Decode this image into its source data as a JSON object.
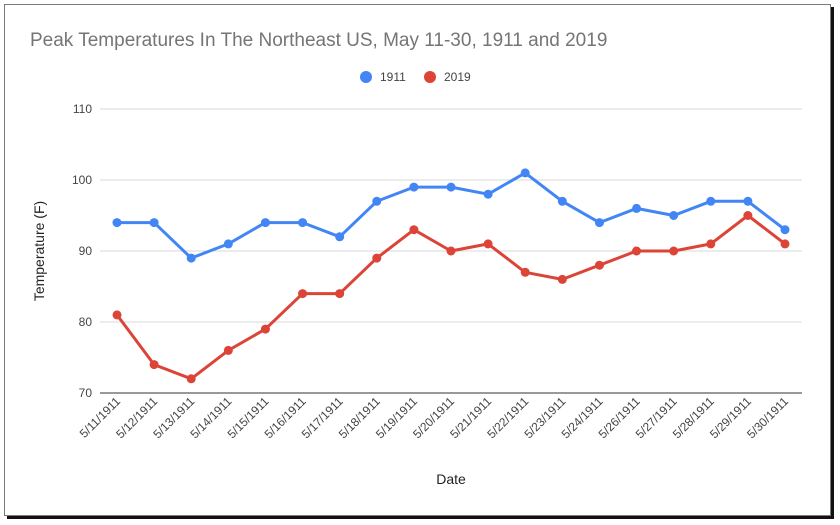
{
  "chart_data": {
    "type": "line",
    "title": "Peak Temperatures In The Northeast US, May 11-30, 1911 and 2019",
    "xlabel": "Date",
    "ylabel": "Temperature (F)",
    "ylim": [
      70,
      110
    ],
    "yticks": [
      70,
      80,
      90,
      100,
      110
    ],
    "grid": true,
    "legend_position": "top",
    "categories": [
      "5/11/1911",
      "5/12/1911",
      "5/13/1911",
      "5/14/1911",
      "5/15/1911",
      "5/16/1911",
      "5/17/1911",
      "5/18/1911",
      "5/19/1911",
      "5/20/1911",
      "5/21/1911",
      "5/22/1911",
      "5/23/1911",
      "5/24/1911",
      "5/26/1911",
      "5/27/1911",
      "5/28/1911",
      "5/29/1911",
      "5/30/1911"
    ],
    "series": [
      {
        "name": "1911",
        "color": "#4285f4",
        "values": [
          94,
          94,
          89,
          91,
          94,
          94,
          92,
          97,
          99,
          99,
          98,
          101,
          97,
          94,
          96,
          95,
          97,
          97,
          93
        ]
      },
      {
        "name": "2019",
        "color": "#db4437",
        "values": [
          81,
          74,
          72,
          76,
          79,
          84,
          84,
          89,
          93,
          90,
          91,
          87,
          86,
          88,
          90,
          90,
          91,
          95,
          91
        ]
      }
    ]
  }
}
